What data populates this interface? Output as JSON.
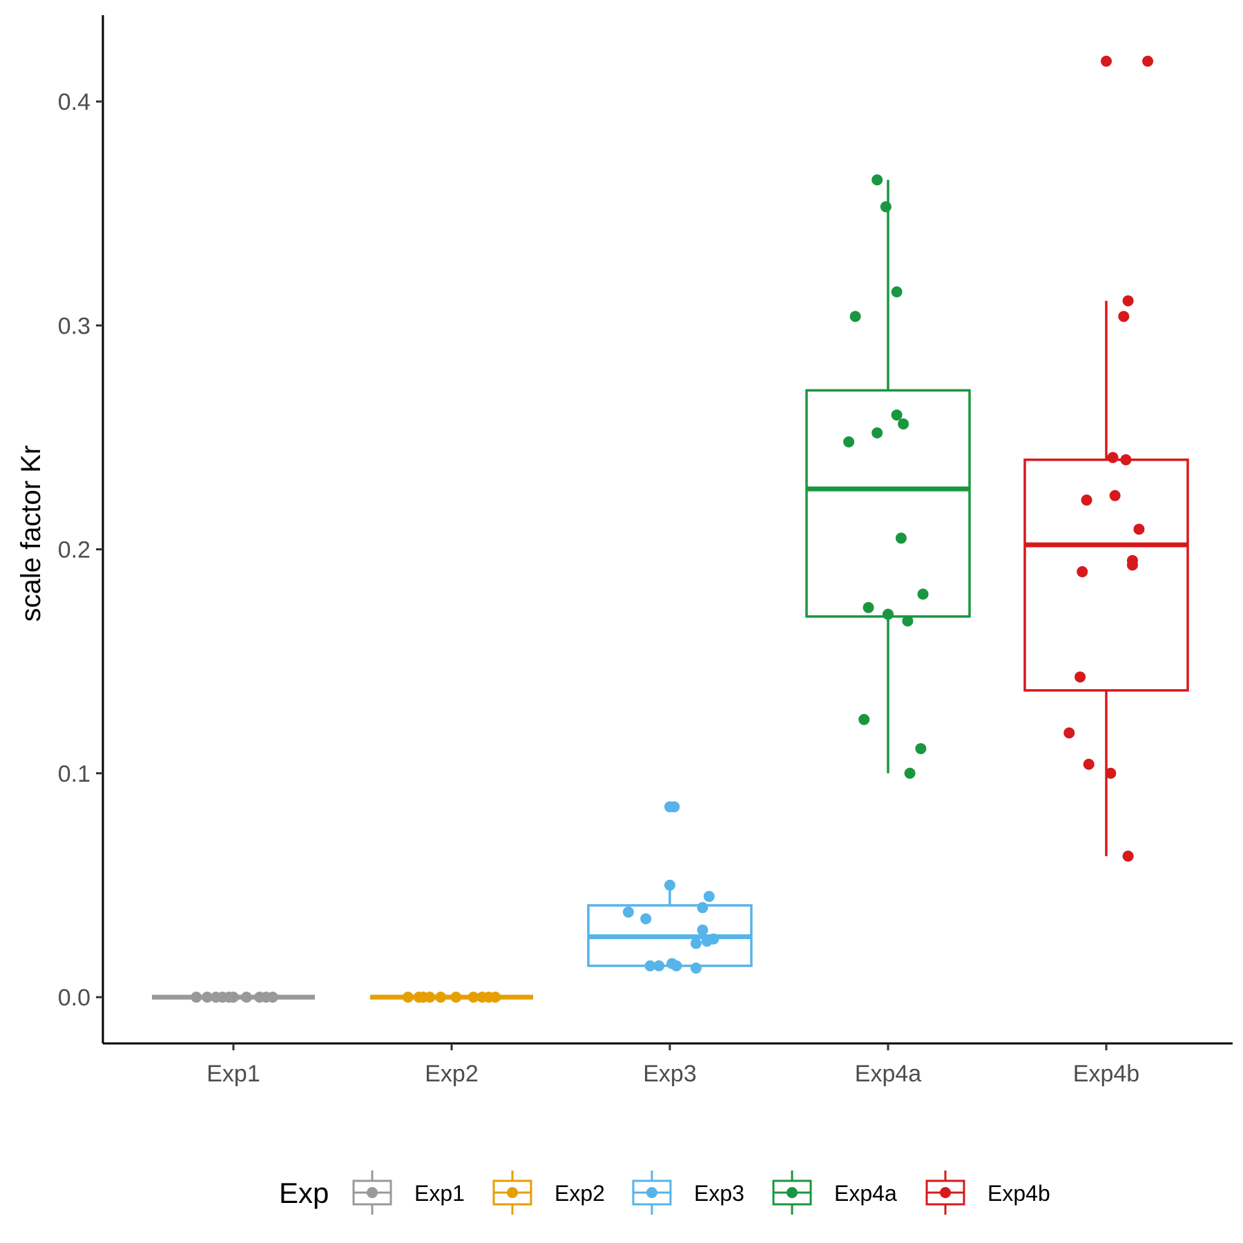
{
  "chart_data": {
    "type": "boxplot",
    "ylabel": "scale factor Kr",
    "xlabel": "",
    "ylim": [
      -0.02,
      0.435
    ],
    "yticks": [
      "0.0",
      "0.1",
      "0.2",
      "0.3",
      "0.4"
    ],
    "categories": [
      "Exp1",
      "Exp2",
      "Exp3",
      "Exp4a",
      "Exp4b"
    ],
    "legend": {
      "title": "Exp",
      "position": "bottom"
    },
    "grid": false,
    "series": [
      {
        "name": "Exp1",
        "color": "#999999",
        "box": {
          "whisker_low": 0.0,
          "q1": 0.0,
          "median": 0.0,
          "q3": 0.0,
          "whisker_high": 0.0
        },
        "points": [
          [
            -0.17,
            0.0
          ],
          [
            -0.12,
            0.0
          ],
          [
            -0.05,
            0.0
          ],
          [
            0.0,
            0.0
          ],
          [
            0.12,
            0.0
          ],
          [
            0.15,
            0.0
          ],
          [
            0.18,
            0.0
          ],
          [
            -0.08,
            0.0
          ],
          [
            0.06,
            0.0
          ],
          [
            -0.02,
            0.0
          ]
        ]
      },
      {
        "name": "Exp2",
        "color": "#E69F00",
        "box": {
          "whisker_low": 0.0,
          "q1": 0.0,
          "median": 0.0,
          "q3": 0.0,
          "whisker_high": 0.0
        },
        "points": [
          [
            -0.2,
            0.0
          ],
          [
            -0.15,
            0.0
          ],
          [
            -0.1,
            0.0
          ],
          [
            -0.05,
            0.0
          ],
          [
            0.02,
            0.0
          ],
          [
            0.1,
            0.0
          ],
          [
            0.14,
            0.0
          ],
          [
            0.17,
            0.0
          ],
          [
            0.2,
            0.0
          ],
          [
            -0.13,
            0.0
          ]
        ]
      },
      {
        "name": "Exp3",
        "color": "#56B4E9",
        "box": {
          "whisker_low": 0.014,
          "q1": 0.014,
          "median": 0.027,
          "q3": 0.041,
          "whisker_high": 0.05
        },
        "points": [
          [
            0.0,
            0.085
          ],
          [
            0.02,
            0.085
          ],
          [
            0.0,
            0.05
          ],
          [
            0.18,
            0.045
          ],
          [
            0.15,
            0.04
          ],
          [
            -0.19,
            0.038
          ],
          [
            -0.11,
            0.035
          ],
          [
            0.15,
            0.03
          ],
          [
            0.17,
            0.025
          ],
          [
            0.2,
            0.026
          ],
          [
            0.12,
            0.024
          ],
          [
            -0.09,
            0.014
          ],
          [
            -0.05,
            0.014
          ],
          [
            0.01,
            0.015
          ],
          [
            0.12,
            0.013
          ],
          [
            0.03,
            0.014
          ]
        ]
      },
      {
        "name": "Exp4a",
        "color": "#1A9641",
        "box": {
          "whisker_low": 0.1,
          "q1": 0.17,
          "median": 0.227,
          "q3": 0.271,
          "whisker_high": 0.365
        },
        "points": [
          [
            -0.05,
            0.365
          ],
          [
            -0.01,
            0.353
          ],
          [
            0.04,
            0.315
          ],
          [
            -0.15,
            0.304
          ],
          [
            0.04,
            0.26
          ],
          [
            -0.18,
            0.248
          ],
          [
            -0.05,
            0.252
          ],
          [
            0.07,
            0.256
          ],
          [
            0.06,
            0.205
          ],
          [
            0.16,
            0.18
          ],
          [
            -0.09,
            0.174
          ],
          [
            0.0,
            0.171
          ],
          [
            0.09,
            0.168
          ],
          [
            -0.11,
            0.124
          ],
          [
            0.15,
            0.111
          ],
          [
            0.1,
            0.1
          ]
        ]
      },
      {
        "name": "Exp4b",
        "color": "#D7191C",
        "box": {
          "whisker_low": 0.063,
          "q1": 0.137,
          "median": 0.202,
          "q3": 0.24,
          "whisker_high": 0.311
        },
        "points": [
          [
            0.0,
            0.418
          ],
          [
            0.19,
            0.418
          ],
          [
            0.1,
            0.311
          ],
          [
            0.08,
            0.304
          ],
          [
            0.03,
            0.241
          ],
          [
            0.09,
            0.24
          ],
          [
            -0.09,
            0.222
          ],
          [
            0.04,
            0.224
          ],
          [
            0.15,
            0.209
          ],
          [
            0.12,
            0.195
          ],
          [
            0.12,
            0.193
          ],
          [
            -0.11,
            0.19
          ],
          [
            -0.12,
            0.143
          ],
          [
            -0.17,
            0.118
          ],
          [
            -0.08,
            0.104
          ],
          [
            0.02,
            0.1
          ],
          [
            0.1,
            0.063
          ]
        ]
      }
    ]
  }
}
